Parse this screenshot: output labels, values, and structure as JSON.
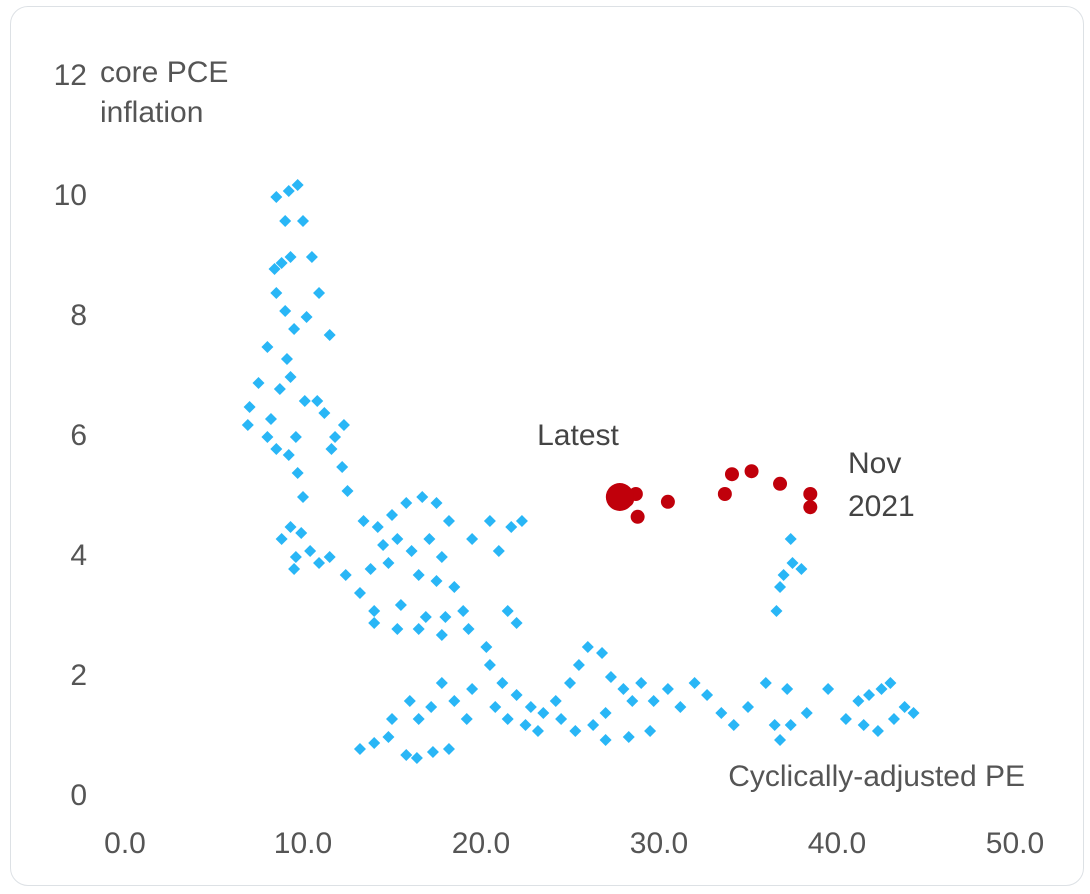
{
  "chart_data": {
    "type": "scatter",
    "y_label": [
      "core PCE",
      "inflation"
    ],
    "x_label": "Cyclically-adjusted PE",
    "annotations": [
      {
        "text": "Latest"
      },
      {
        "text": [
          "Nov",
          "2021"
        ]
      }
    ],
    "xlim": [
      0,
      50
    ],
    "ylim": [
      0,
      12
    ],
    "xticks": [
      {
        "value": 0,
        "label": "0.0"
      },
      {
        "value": 10,
        "label": "10.0"
      },
      {
        "value": 20,
        "label": "20.0"
      },
      {
        "value": 30,
        "label": "30.0"
      },
      {
        "value": 40,
        "label": "40.0"
      },
      {
        "value": 50,
        "label": "50.0"
      }
    ],
    "yticks": [
      0,
      2,
      4,
      6,
      8,
      10,
      12
    ],
    "grid": false,
    "series": [
      {
        "color": "#29b6f6",
        "marker": "diamond",
        "marker_size": 6,
        "x": [
          8.5,
          9.2,
          9.7,
          9.0,
          10.0,
          9.3,
          8.8,
          8.4,
          10.5,
          8.5,
          9.0,
          10.2,
          10.9,
          9.5,
          8.0,
          9.1,
          9.3,
          11.5,
          7.5,
          8.7,
          10.1,
          10.8,
          11.2,
          7.0,
          6.9,
          8.2,
          9.6,
          11.8,
          12.3,
          8.0,
          8.5,
          11.6,
          12.2,
          9.2,
          9.7,
          10.0,
          12.5,
          9.3,
          9.9,
          8.8,
          9.6,
          10.4,
          9.5,
          10.9,
          11.5,
          12.4,
          13.4,
          14.2,
          15.0,
          15.8,
          16.7,
          17.5,
          18.2,
          14.5,
          15.3,
          16.1,
          17.1,
          17.8,
          13.8,
          14.8,
          16.5,
          17.5,
          18.5,
          13.2,
          14.0,
          15.5,
          16.9,
          18.0,
          19.0,
          14.0,
          15.3,
          16.5,
          17.8,
          19.3,
          20.3,
          21.5,
          22.0,
          20.5,
          21.7,
          22.3,
          21.0,
          19.5,
          20.5,
          21.2,
          22.0,
          22.8,
          23.5,
          24.2,
          25.0,
          25.5,
          26.0,
          26.8,
          27.3,
          28.0,
          20.8,
          21.5,
          22.5,
          23.2,
          24.5,
          25.3,
          26.3,
          27.0,
          28.5,
          29.0,
          29.7,
          30.5,
          31.2,
          32.0,
          32.7,
          33.5,
          34.2,
          35.0,
          36.0,
          37.2,
          38.3,
          39.5,
          36.5,
          37.4,
          36.8,
          40.5,
          41.2,
          41.8,
          42.5,
          43.0,
          43.8,
          44.3,
          41.5,
          42.3,
          43.2,
          27.0,
          28.3,
          29.5,
          13.2,
          14.0,
          14.8,
          15.8,
          16.4,
          17.3,
          18.2,
          15.0,
          16.0,
          16.5,
          17.2,
          17.8,
          18.5,
          19.2,
          19.5,
          36.6,
          36.8,
          37.0,
          37.5,
          38.0,
          37.4
        ],
        "y": [
          10.0,
          10.1,
          10.2,
          9.6,
          9.6,
          9.0,
          8.9,
          8.8,
          9.0,
          8.4,
          8.1,
          8.0,
          8.4,
          7.8,
          7.5,
          7.3,
          7.0,
          7.7,
          6.9,
          6.8,
          6.6,
          6.6,
          6.4,
          6.5,
          6.2,
          6.3,
          6.0,
          6.0,
          6.2,
          6.0,
          5.8,
          5.8,
          5.5,
          5.7,
          5.4,
          5.0,
          5.1,
          4.5,
          4.4,
          4.3,
          4.0,
          4.1,
          3.8,
          3.9,
          4.0,
          3.7,
          4.6,
          4.5,
          4.7,
          4.9,
          5.0,
          4.9,
          4.6,
          4.2,
          4.3,
          4.1,
          4.3,
          4.0,
          3.8,
          3.9,
          3.7,
          3.6,
          3.5,
          3.4,
          3.1,
          3.2,
          3.0,
          3.0,
          3.1,
          2.9,
          2.8,
          2.8,
          2.7,
          2.8,
          2.5,
          3.1,
          2.9,
          4.6,
          4.5,
          4.6,
          4.1,
          4.3,
          2.2,
          1.9,
          1.7,
          1.5,
          1.4,
          1.6,
          1.9,
          2.2,
          2.5,
          2.4,
          2.0,
          1.8,
          1.5,
          1.3,
          1.2,
          1.1,
          1.3,
          1.1,
          1.2,
          1.4,
          1.6,
          1.9,
          1.6,
          1.8,
          1.5,
          1.9,
          1.7,
          1.4,
          1.2,
          1.5,
          1.9,
          1.8,
          1.4,
          1.8,
          1.2,
          1.2,
          0.95,
          1.3,
          1.6,
          1.7,
          1.8,
          1.9,
          1.5,
          1.4,
          1.2,
          1.1,
          1.3,
          0.95,
          1.0,
          1.1,
          0.8,
          0.9,
          1.0,
          0.7,
          0.65,
          0.75,
          0.8,
          1.3,
          1.6,
          1.3,
          1.5,
          1.9,
          1.6,
          1.3,
          1.8,
          3.1,
          3.5,
          3.7,
          3.9,
          3.8,
          4.3
        ]
      },
      {
        "color": "#c0000b",
        "marker": "circle",
        "marker_size": 7,
        "x": [
          28.2,
          28.7,
          28.8,
          30.5,
          33.7,
          34.1,
          35.2,
          36.8,
          38.5,
          38.5
        ],
        "y": [
          4.95,
          5.05,
          4.67,
          4.92,
          5.05,
          5.38,
          5.43,
          5.22,
          5.05,
          4.83
        ]
      },
      {
        "color": "#c0000b",
        "marker": "circle",
        "marker_size": 14,
        "x": [
          27.8
        ],
        "y": [
          5.0
        ]
      }
    ]
  }
}
